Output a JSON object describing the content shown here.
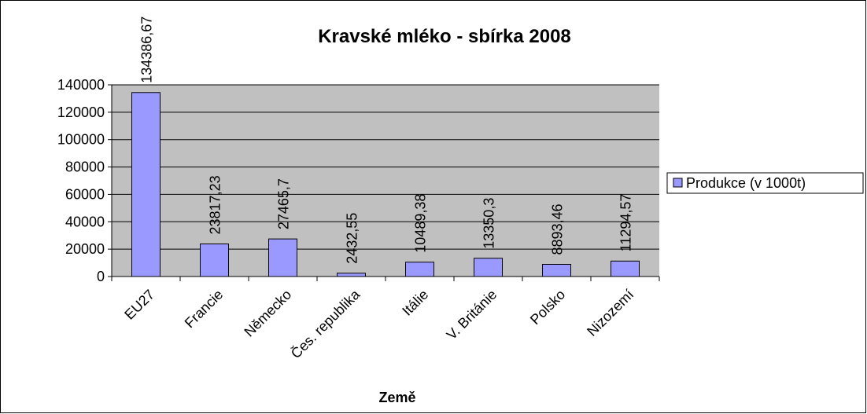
{
  "chart_data": {
    "type": "bar",
    "title": "Kravské mléko - sbírka 2008",
    "x_label": "Země",
    "categories": [
      "EU27",
      "Francie",
      "Německo",
      "Čes. republika",
      "Itálie",
      "V. Británie",
      "Polsko",
      "Nizozemí"
    ],
    "series": [
      {
        "name": "Produkce (v 1000t)",
        "color": "#9999ff",
        "values": [
          134386.67,
          23817.23,
          27465.7,
          2432.55,
          10489.38,
          13350.3,
          8893.46,
          11294.57
        ],
        "value_labels": [
          "134386,67",
          "23817,23",
          "27465,7",
          "2432,55",
          "10489,38",
          "13350,3",
          "8893,46",
          "11294,57"
        ]
      }
    ],
    "ylim": [
      0,
      140000
    ],
    "yticks": [
      0,
      20000,
      40000,
      60000,
      80000,
      100000,
      120000,
      140000
    ],
    "grid": true,
    "legend": "right"
  }
}
